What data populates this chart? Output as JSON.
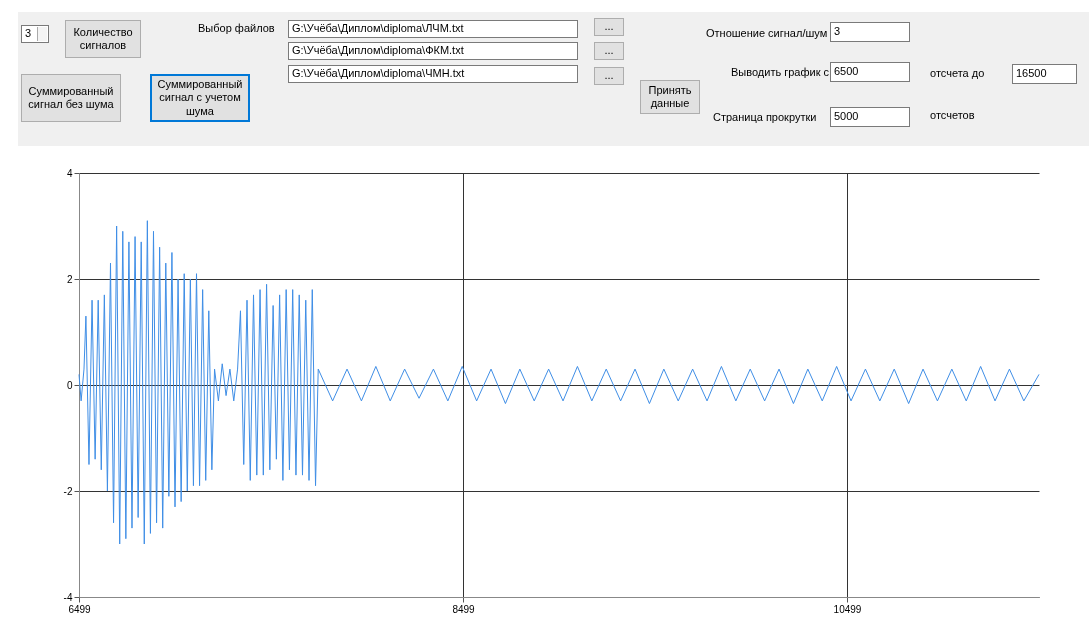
{
  "chart_data": [
    {
      "type": "other",
      "annotations": [
        "3",
        "Количество сигналов",
        "Выбор файлов",
        "G:\\Учёба\\Диплом\\diploma\\ЛЧМ.txt",
        "G:\\Учёба\\Диплом\\diploma\\ФКМ.txt",
        "G:\\Учёба\\Диплом\\diploma\\ЧМН.txt",
        "...",
        "...",
        "...",
        "Суммированный сигнал без шума",
        "Суммированный сигнал с учетом шума",
        "Принять данные",
        "Отношение сигнал/шум",
        "3",
        "Выводить график с",
        "6500",
        "отсчета до",
        "16500",
        "Страница прокрутки",
        "5000",
        "отсчетов"
      ]
    },
    {
      "type": "line",
      "xlim": [
        6499,
        11499
      ],
      "xticks": [
        6499,
        8499,
        10499
      ],
      "ylim": [
        -4,
        4
      ],
      "yticks": [
        -4,
        -2,
        0,
        2,
        4
      ],
      "grid": true,
      "line_style": "solid",
      "series": [
        {
          "color": "#3f8ee6",
          "x": [
            6499,
            6510,
            6525,
            6535,
            6551,
            6567,
            6583,
            6599,
            6615,
            6631,
            6647,
            6663,
            6679,
            6695,
            6711,
            6727,
            6743,
            6759,
            6775,
            6791,
            6807,
            6823,
            6839,
            6855,
            6871,
            6887,
            6903,
            6919,
            6935,
            6951,
            6967,
            6983,
            6999,
            7015,
            7031,
            7047,
            7063,
            7079,
            7095,
            7111,
            7127,
            7143,
            7159,
            7175,
            7191,
            7205,
            7225,
            7245,
            7265,
            7285,
            7305,
            7325,
            7340,
            7357,
            7374,
            7391,
            7408,
            7425,
            7442,
            7459,
            7476,
            7493,
            7510,
            7527,
            7544,
            7561,
            7578,
            7595,
            7612,
            7629,
            7646,
            7663,
            7680,
            7697,
            7714,
            7731,
            7745,
            7820,
            7895,
            7970,
            8045,
            8120,
            8195,
            8270,
            8345,
            8420,
            8495,
            8570,
            8645,
            8720,
            8795,
            8870,
            8945,
            9020,
            9095,
            9170,
            9245,
            9320,
            9395,
            9470,
            9545,
            9620,
            9695,
            9770,
            9845,
            9920,
            9995,
            10070,
            10145,
            10220,
            10295,
            10370,
            10445,
            10520,
            10595,
            10670,
            10745,
            10820,
            10895,
            10970,
            11045,
            11120,
            11195,
            11270,
            11345,
            11420,
            11499
          ],
          "values": [
            0.2,
            -0.3,
            0.3,
            1.3,
            -1.5,
            1.6,
            -1.4,
            1.6,
            -1.6,
            1.7,
            -2.0,
            2.3,
            -2.6,
            3.0,
            -3.0,
            2.9,
            -2.9,
            2.7,
            -2.7,
            2.8,
            -2.5,
            2.7,
            -3.0,
            3.1,
            -2.8,
            2.9,
            -2.6,
            2.6,
            -2.7,
            2.3,
            -2.1,
            2.5,
            -2.3,
            2.0,
            -2.2,
            2.1,
            -2.0,
            2.0,
            -1.9,
            2.1,
            -1.9,
            1.8,
            -1.8,
            1.4,
            -1.6,
            0.3,
            -0.3,
            0.4,
            -0.2,
            0.3,
            -0.3,
            0.3,
            1.4,
            -1.5,
            1.6,
            -1.8,
            1.7,
            -1.7,
            1.8,
            -1.7,
            1.9,
            -1.6,
            1.5,
            -1.4,
            1.7,
            -1.8,
            1.8,
            -1.6,
            1.8,
            -1.7,
            1.7,
            -1.7,
            1.6,
            -1.8,
            1.8,
            -1.9,
            0.3,
            -0.3,
            0.3,
            -0.3,
            0.35,
            -0.3,
            0.3,
            -0.25,
            0.3,
            -0.3,
            0.35,
            -0.3,
            0.3,
            -0.35,
            0.3,
            -0.3,
            0.3,
            -0.3,
            0.35,
            -0.3,
            0.3,
            -0.3,
            0.3,
            -0.35,
            0.3,
            -0.3,
            0.3,
            -0.3,
            0.35,
            -0.3,
            0.3,
            -0.3,
            0.3,
            -0.35,
            0.3,
            -0.3,
            0.35,
            -0.3,
            0.3,
            -0.3,
            0.3,
            -0.35,
            0.3,
            -0.3,
            0.3,
            -0.3,
            0.35,
            -0.3,
            0.3,
            -0.3,
            0.2
          ]
        }
      ]
    }
  ]
}
